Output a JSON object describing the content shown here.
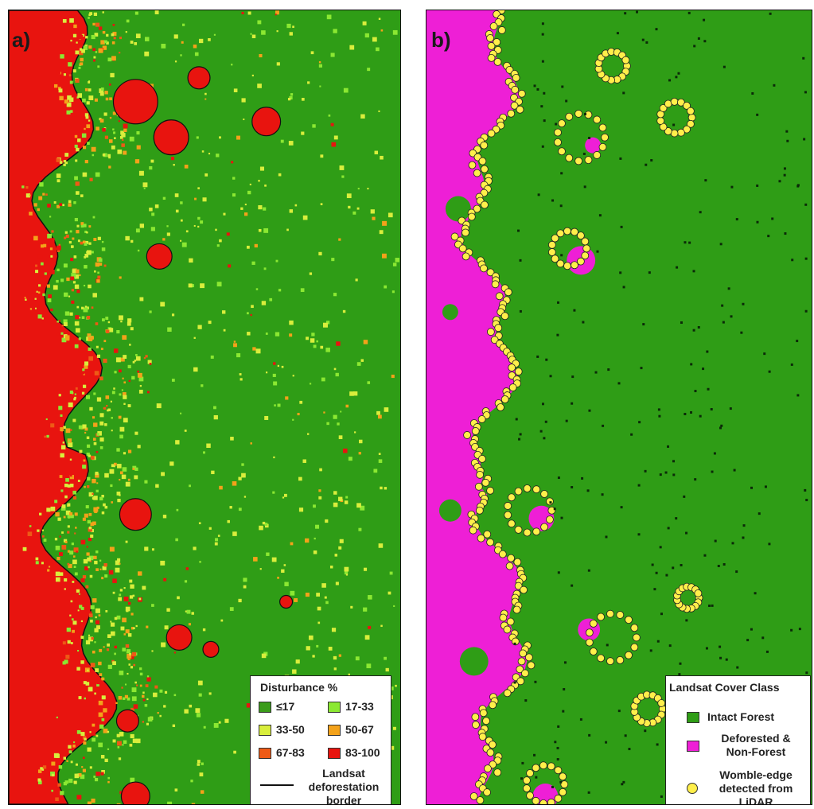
{
  "panel_a": {
    "label": "a)",
    "legend": {
      "title": "Disturbance %",
      "classes": [
        {
          "label": "≤17",
          "color": "#3a9c1a"
        },
        {
          "label": "17-33",
          "color": "#8be832"
        },
        {
          "label": "33-50",
          "color": "#d9ee3c"
        },
        {
          "label": "50-67",
          "color": "#f3a21a"
        },
        {
          "label": "67-83",
          "color": "#ee5a16"
        },
        {
          "label": "83-100",
          "color": "#e8140f"
        }
      ],
      "border_label_line1": "Landsat",
      "border_label_line2": "deforestation",
      "border_label_line3": "border"
    }
  },
  "panel_b": {
    "label": "b)",
    "legend": {
      "title": "Landsat Cover Class",
      "intact_label": "Intact Forest",
      "intact_color": "#2f9d16",
      "deforested_line1": "Deforested &",
      "deforested_line2": "Non-Forest",
      "deforested_color": "#ee1fd6",
      "womble_line1": "Womble-edge",
      "womble_line2": "detected from",
      "womble_line3": "LiDAR",
      "womble_color": "#ffef4a"
    }
  }
}
